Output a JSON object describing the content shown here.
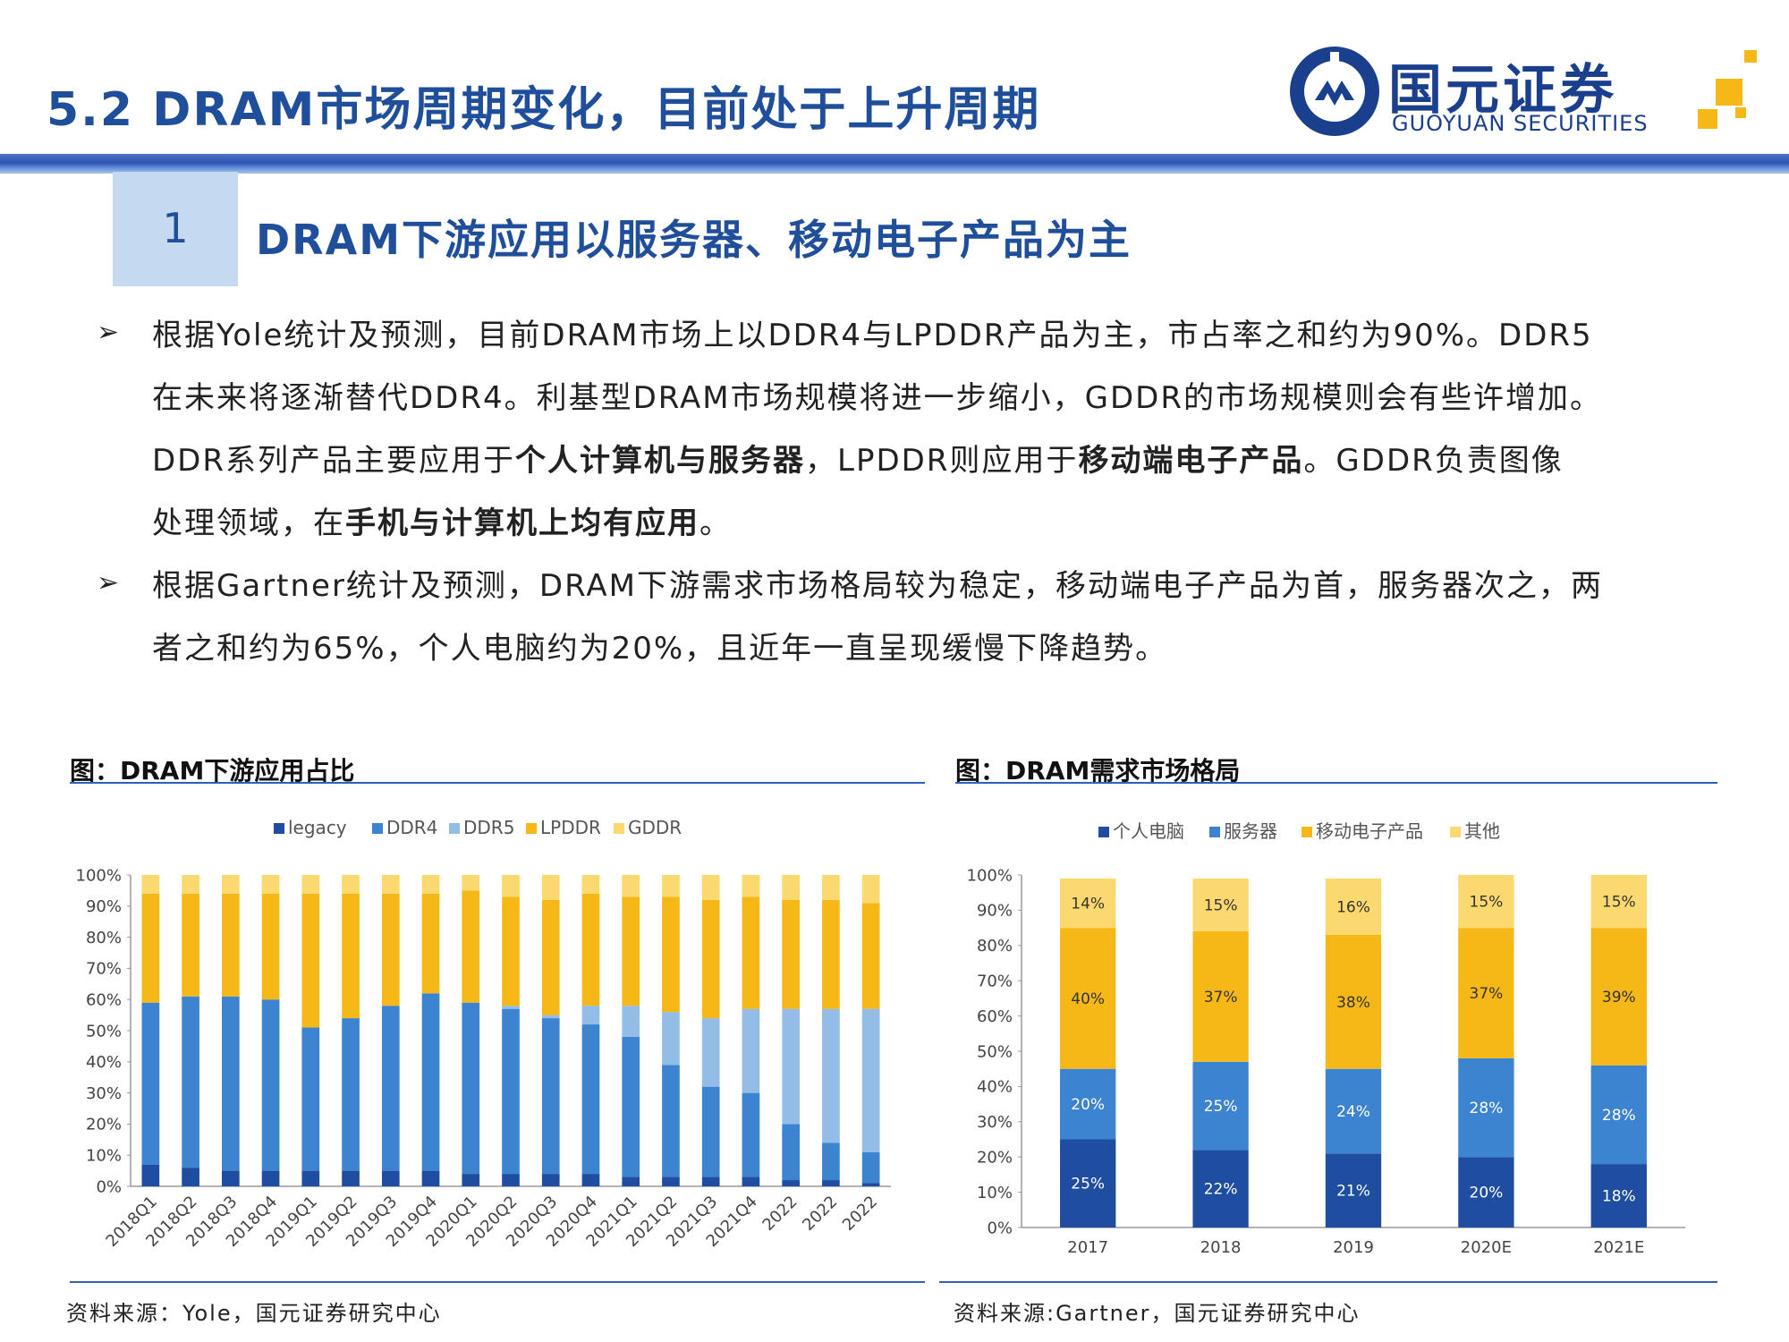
{
  "header": {
    "page_title": "5.2 DRAM市场周期变化，目前处于上升周期",
    "logo_cn": "国元证券",
    "logo_en": "GUOYUAN SECURITIES"
  },
  "section": {
    "number": "1",
    "title": "DRAM下游应用以服务器、移动电子产品为主"
  },
  "colors": {
    "brand_blue": "#1f4e9a",
    "legacy": "#1f4ea1",
    "ddr4": "#3d84d0",
    "ddr5": "#93bde6",
    "lpddr": "#f5b817",
    "gddr": "#fcd96e"
  },
  "bullets": [
    {
      "icon": "arrow-bullet-icon",
      "lines": [
        [
          {
            "t": "根据Yole统计及预测，目前DRAM市场上以DDR4与LPDDR产品为主，市占率之和约为90%。DDR5"
          }
        ],
        [
          {
            "t": "在未来将逐渐替代DDR4。利基型DRAM市场规模将进一步缩小，GDDR的市场规模则会有些许增加。"
          }
        ],
        [
          {
            "t": "DDR系列产品主要应用于"
          },
          {
            "t": "个人计算机与服务器",
            "b": true
          },
          {
            "t": "，LPDDR则应用于"
          },
          {
            "t": "移动端电子产品",
            "b": true
          },
          {
            "t": "。GDDR负责图像"
          }
        ],
        [
          {
            "t": "处理领域，在"
          },
          {
            "t": "手机与计算机上均有应用",
            "b": true
          },
          {
            "t": "。"
          }
        ]
      ]
    },
    {
      "icon": "arrow-bullet-icon",
      "lines": [
        [
          {
            "t": "根据Gartner统计及预测，DRAM下游需求市场格局较为稳定，移动端电子产品为首，服务器次之，两"
          }
        ],
        [
          {
            "t": "者之和约为65%，个人电脑约为20%，且近年一直呈现缓慢下降趋势。"
          }
        ]
      ]
    }
  ],
  "figure_left": {
    "title": "图：DRAM下游应用占比",
    "source": "资料来源：Yole，国元证券研究中心"
  },
  "figure_right": {
    "title": "图：DRAM需求市场格局",
    "source": "资料来源:Gartner，国元证券研究中心"
  },
  "chart_data": [
    {
      "type": "bar",
      "stacked": true,
      "categories": [
        "2018Q1",
        "2018Q2",
        "2018Q3",
        "2018Q4",
        "2019Q1",
        "2019Q2",
        "2019Q3",
        "2019Q4",
        "2020Q1",
        "2020Q2",
        "2020Q3",
        "2020Q4",
        "2021Q1",
        "2021Q2",
        "2021Q3",
        "2021Q4",
        "2022",
        "2022",
        "2022"
      ],
      "ylim": [
        0,
        100
      ],
      "yticks": [
        "0%",
        "10%",
        "20%",
        "30%",
        "40%",
        "50%",
        "60%",
        "70%",
        "80%",
        "90%",
        "100%"
      ],
      "grid": false,
      "legend_position": "top",
      "series": [
        {
          "name": "legacy",
          "color": "#1f4ea1",
          "values": [
            7,
            6,
            5,
            5,
            5,
            5,
            5,
            5,
            4,
            4,
            4,
            4,
            3,
            3,
            3,
            3,
            2,
            2,
            1
          ]
        },
        {
          "name": "DDR4",
          "color": "#3d84d0",
          "values": [
            52,
            55,
            56,
            55,
            46,
            49,
            53,
            57,
            55,
            53,
            50,
            48,
            45,
            36,
            29,
            27,
            18,
            12,
            10
          ]
        },
        {
          "name": "DDR5",
          "color": "#93bde6",
          "values": [
            0,
            0,
            0,
            0,
            0,
            0,
            0,
            0,
            0,
            1,
            1,
            6,
            10,
            17,
            22,
            27,
            37,
            43,
            46
          ]
        },
        {
          "name": "LPDDR",
          "color": "#f5b817",
          "values": [
            35,
            33,
            33,
            34,
            43,
            40,
            36,
            32,
            36,
            35,
            37,
            36,
            35,
            37,
            38,
            36,
            35,
            35,
            34
          ]
        },
        {
          "name": "GDDR",
          "color": "#fcd96e",
          "values": [
            6,
            6,
            6,
            6,
            6,
            6,
            6,
            6,
            5,
            7,
            8,
            6,
            7,
            7,
            8,
            7,
            8,
            8,
            9
          ]
        }
      ]
    },
    {
      "type": "bar",
      "stacked": true,
      "categories": [
        "2017",
        "2018",
        "2019",
        "2020E",
        "2021E"
      ],
      "ylim": [
        0,
        100
      ],
      "yticks": [
        "0%",
        "10%",
        "20%",
        "30%",
        "40%",
        "50%",
        "60%",
        "70%",
        "80%",
        "90%",
        "100%"
      ],
      "grid": false,
      "legend_position": "top",
      "series": [
        {
          "name": "个人电脑",
          "color": "#1f4ea1",
          "values": [
            25,
            22,
            21,
            20,
            18
          ],
          "labels": [
            "25%",
            "22%",
            "21%",
            "20%",
            "18%"
          ]
        },
        {
          "name": "服务器",
          "color": "#3d84d0",
          "values": [
            20,
            25,
            24,
            28,
            28
          ],
          "labels": [
            "20%",
            "25%",
            "24%",
            "28%",
            "28%"
          ]
        },
        {
          "name": "移动电子产品",
          "color": "#f5b817",
          "values": [
            40,
            37,
            38,
            37,
            39
          ],
          "labels": [
            "40%",
            "37%",
            "38%",
            "37%",
            "39%"
          ]
        },
        {
          "name": "其他",
          "color": "#fcd96e",
          "values": [
            14,
            15,
            16,
            15,
            15
          ],
          "labels": [
            "14%",
            "15%",
            "16%",
            "15%",
            "15%"
          ]
        }
      ]
    }
  ]
}
